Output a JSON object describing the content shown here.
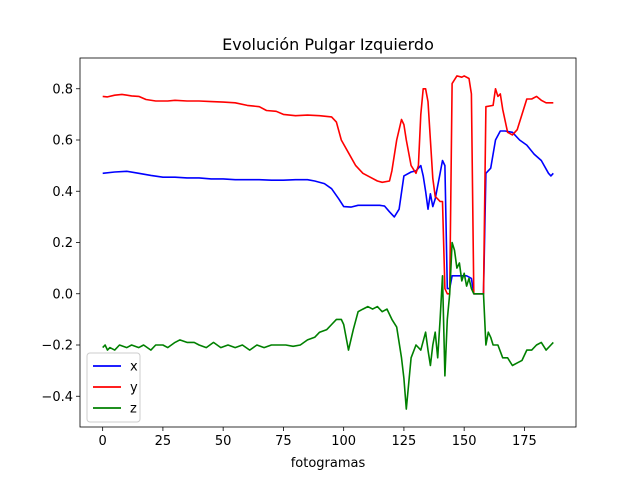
{
  "chart_data": {
    "type": "line",
    "title": "Evolución Pulgar Izquierdo",
    "xlabel": "fotogramas",
    "ylabel": "",
    "xlim": [
      -9.4,
      196.4
    ],
    "ylim": [
      -0.52,
      0.92
    ],
    "xticks": [
      0,
      25,
      50,
      75,
      100,
      125,
      150,
      175
    ],
    "yticks": [
      -0.4,
      -0.2,
      0.0,
      0.2,
      0.4,
      0.6,
      0.8
    ],
    "ytick_labels": [
      "−0.4",
      "−0.2",
      "0.0",
      "0.2",
      "0.4",
      "0.6",
      "0.8"
    ],
    "grid": false,
    "legend_position": "lower-left",
    "series": [
      {
        "name": "x",
        "color": "#0000ff",
        "points": [
          [
            0,
            0.47
          ],
          [
            5,
            0.475
          ],
          [
            10,
            0.478
          ],
          [
            15,
            0.47
          ],
          [
            20,
            0.462
          ],
          [
            25,
            0.455
          ],
          [
            30,
            0.455
          ],
          [
            35,
            0.452
          ],
          [
            40,
            0.452
          ],
          [
            45,
            0.448
          ],
          [
            50,
            0.448
          ],
          [
            55,
            0.445
          ],
          [
            60,
            0.445
          ],
          [
            65,
            0.445
          ],
          [
            70,
            0.443
          ],
          [
            75,
            0.443
          ],
          [
            80,
            0.445
          ],
          [
            85,
            0.445
          ],
          [
            88,
            0.44
          ],
          [
            92,
            0.43
          ],
          [
            95,
            0.41
          ],
          [
            98,
            0.37
          ],
          [
            100,
            0.34
          ],
          [
            103,
            0.338
          ],
          [
            106,
            0.345
          ],
          [
            110,
            0.345
          ],
          [
            115,
            0.345
          ],
          [
            117,
            0.342
          ],
          [
            119,
            0.32
          ],
          [
            121,
            0.3
          ],
          [
            123,
            0.33
          ],
          [
            125,
            0.46
          ],
          [
            128,
            0.475
          ],
          [
            130,
            0.48
          ],
          [
            132,
            0.5
          ],
          [
            133,
            0.46
          ],
          [
            134,
            0.4
          ],
          [
            135,
            0.33
          ],
          [
            136,
            0.39
          ],
          [
            137,
            0.34
          ],
          [
            138,
            0.37
          ],
          [
            140,
            0.47
          ],
          [
            141,
            0.52
          ],
          [
            142,
            0.5
          ],
          [
            143,
            0.02
          ],
          [
            144,
            0.02
          ],
          [
            145,
            0.07
          ],
          [
            148,
            0.07
          ],
          [
            151,
            0.07
          ],
          [
            152,
            0.065
          ],
          [
            153,
            0.06
          ],
          [
            154,
            0.0
          ],
          [
            158,
            0.0
          ],
          [
            159,
            0.47
          ],
          [
            161,
            0.49
          ],
          [
            163,
            0.6
          ],
          [
            165,
            0.635
          ],
          [
            167,
            0.635
          ],
          [
            170,
            0.63
          ],
          [
            173,
            0.6
          ],
          [
            176,
            0.58
          ],
          [
            179,
            0.545
          ],
          [
            182,
            0.52
          ],
          [
            185,
            0.47
          ],
          [
            186,
            0.46
          ],
          [
            187,
            0.47
          ]
        ]
      },
      {
        "name": "y",
        "color": "#ff0000",
        "points": [
          [
            0,
            0.77
          ],
          [
            2,
            0.768
          ],
          [
            5,
            0.775
          ],
          [
            8,
            0.778
          ],
          [
            12,
            0.772
          ],
          [
            15,
            0.77
          ],
          [
            18,
            0.758
          ],
          [
            22,
            0.752
          ],
          [
            27,
            0.752
          ],
          [
            30,
            0.755
          ],
          [
            35,
            0.752
          ],
          [
            40,
            0.752
          ],
          [
            45,
            0.75
          ],
          [
            50,
            0.748
          ],
          [
            55,
            0.745
          ],
          [
            60,
            0.735
          ],
          [
            65,
            0.73
          ],
          [
            68,
            0.715
          ],
          [
            72,
            0.712
          ],
          [
            75,
            0.7
          ],
          [
            80,
            0.695
          ],
          [
            85,
            0.697
          ],
          [
            90,
            0.695
          ],
          [
            95,
            0.69
          ],
          [
            97,
            0.67
          ],
          [
            99,
            0.6
          ],
          [
            102,
            0.55
          ],
          [
            105,
            0.5
          ],
          [
            108,
            0.47
          ],
          [
            111,
            0.455
          ],
          [
            114,
            0.44
          ],
          [
            116,
            0.435
          ],
          [
            119,
            0.44
          ],
          [
            120,
            0.48
          ],
          [
            122,
            0.6
          ],
          [
            124,
            0.68
          ],
          [
            125,
            0.66
          ],
          [
            126,
            0.6
          ],
          [
            128,
            0.5
          ],
          [
            130,
            0.47
          ],
          [
            131,
            0.5
          ],
          [
            132,
            0.7
          ],
          [
            133,
            0.8
          ],
          [
            134,
            0.8
          ],
          [
            135,
            0.75
          ],
          [
            136,
            0.6
          ],
          [
            137,
            0.45
          ],
          [
            138,
            0.38
          ],
          [
            139,
            0.37
          ],
          [
            140,
            0.36
          ],
          [
            141,
            0.36
          ],
          [
            142,
            0.02
          ],
          [
            143,
            0.0
          ],
          [
            144,
            0.0
          ],
          [
            145,
            0.82
          ],
          [
            147,
            0.85
          ],
          [
            149,
            0.845
          ],
          [
            150,
            0.85
          ],
          [
            152,
            0.84
          ],
          [
            153,
            0.78
          ],
          [
            154,
            0.0
          ],
          [
            158,
            0.0
          ],
          [
            159,
            0.73
          ],
          [
            162,
            0.735
          ],
          [
            163,
            0.8
          ],
          [
            164,
            0.77
          ],
          [
            165,
            0.78
          ],
          [
            166,
            0.72
          ],
          [
            168,
            0.63
          ],
          [
            170,
            0.62
          ],
          [
            172,
            0.64
          ],
          [
            174,
            0.7
          ],
          [
            176,
            0.76
          ],
          [
            178,
            0.76
          ],
          [
            180,
            0.77
          ],
          [
            182,
            0.755
          ],
          [
            184,
            0.745
          ],
          [
            187,
            0.745
          ]
        ]
      },
      {
        "name": "z",
        "color": "#008000",
        "points": [
          [
            0,
            -0.21
          ],
          [
            1,
            -0.2
          ],
          [
            2,
            -0.22
          ],
          [
            3,
            -0.21
          ],
          [
            5,
            -0.22
          ],
          [
            7,
            -0.2
          ],
          [
            10,
            -0.21
          ],
          [
            12,
            -0.2
          ],
          [
            15,
            -0.21
          ],
          [
            17,
            -0.2
          ],
          [
            20,
            -0.22
          ],
          [
            22,
            -0.2
          ],
          [
            25,
            -0.2
          ],
          [
            27,
            -0.21
          ],
          [
            30,
            -0.19
          ],
          [
            32,
            -0.18
          ],
          [
            35,
            -0.19
          ],
          [
            38,
            -0.19
          ],
          [
            40,
            -0.2
          ],
          [
            43,
            -0.21
          ],
          [
            46,
            -0.19
          ],
          [
            49,
            -0.21
          ],
          [
            52,
            -0.2
          ],
          [
            55,
            -0.21
          ],
          [
            58,
            -0.2
          ],
          [
            61,
            -0.22
          ],
          [
            64,
            -0.2
          ],
          [
            67,
            -0.21
          ],
          [
            70,
            -0.2
          ],
          [
            73,
            -0.2
          ],
          [
            76,
            -0.2
          ],
          [
            79,
            -0.205
          ],
          [
            82,
            -0.2
          ],
          [
            85,
            -0.18
          ],
          [
            88,
            -0.17
          ],
          [
            90,
            -0.15
          ],
          [
            93,
            -0.14
          ],
          [
            95,
            -0.12
          ],
          [
            97,
            -0.1
          ],
          [
            99,
            -0.1
          ],
          [
            100,
            -0.12
          ],
          [
            102,
            -0.22
          ],
          [
            104,
            -0.14
          ],
          [
            106,
            -0.07
          ],
          [
            108,
            -0.06
          ],
          [
            110,
            -0.05
          ],
          [
            112,
            -0.06
          ],
          [
            114,
            -0.05
          ],
          [
            116,
            -0.07
          ],
          [
            118,
            -0.06
          ],
          [
            120,
            -0.1
          ],
          [
            122,
            -0.13
          ],
          [
            124,
            -0.25
          ],
          [
            125,
            -0.33
          ],
          [
            126,
            -0.45
          ],
          [
            127,
            -0.35
          ],
          [
            128,
            -0.25
          ],
          [
            130,
            -0.2
          ],
          [
            132,
            -0.22
          ],
          [
            134,
            -0.15
          ],
          [
            135,
            -0.22
          ],
          [
            136,
            -0.28
          ],
          [
            137,
            -0.2
          ],
          [
            138,
            -0.15
          ],
          [
            139,
            -0.25
          ],
          [
            140,
            -0.1
          ],
          [
            141,
            0.07
          ],
          [
            142,
            -0.32
          ],
          [
            143,
            -0.1
          ],
          [
            144,
            0.0
          ],
          [
            145,
            0.2
          ],
          [
            146,
            0.17
          ],
          [
            147,
            0.1
          ],
          [
            148,
            0.12
          ],
          [
            149,
            0.05
          ],
          [
            150,
            0.08
          ],
          [
            151,
            0.03
          ],
          [
            152,
            0.06
          ],
          [
            153,
            0.02
          ],
          [
            154,
            0.0
          ],
          [
            158,
            0.0
          ],
          [
            159,
            -0.2
          ],
          [
            160,
            -0.15
          ],
          [
            161,
            -0.17
          ],
          [
            162,
            -0.2
          ],
          [
            164,
            -0.2
          ],
          [
            166,
            -0.25
          ],
          [
            168,
            -0.25
          ],
          [
            170,
            -0.28
          ],
          [
            172,
            -0.27
          ],
          [
            174,
            -0.26
          ],
          [
            176,
            -0.22
          ],
          [
            178,
            -0.22
          ],
          [
            180,
            -0.2
          ],
          [
            182,
            -0.19
          ],
          [
            184,
            -0.22
          ],
          [
            186,
            -0.2
          ],
          [
            187,
            -0.19
          ]
        ]
      }
    ]
  }
}
